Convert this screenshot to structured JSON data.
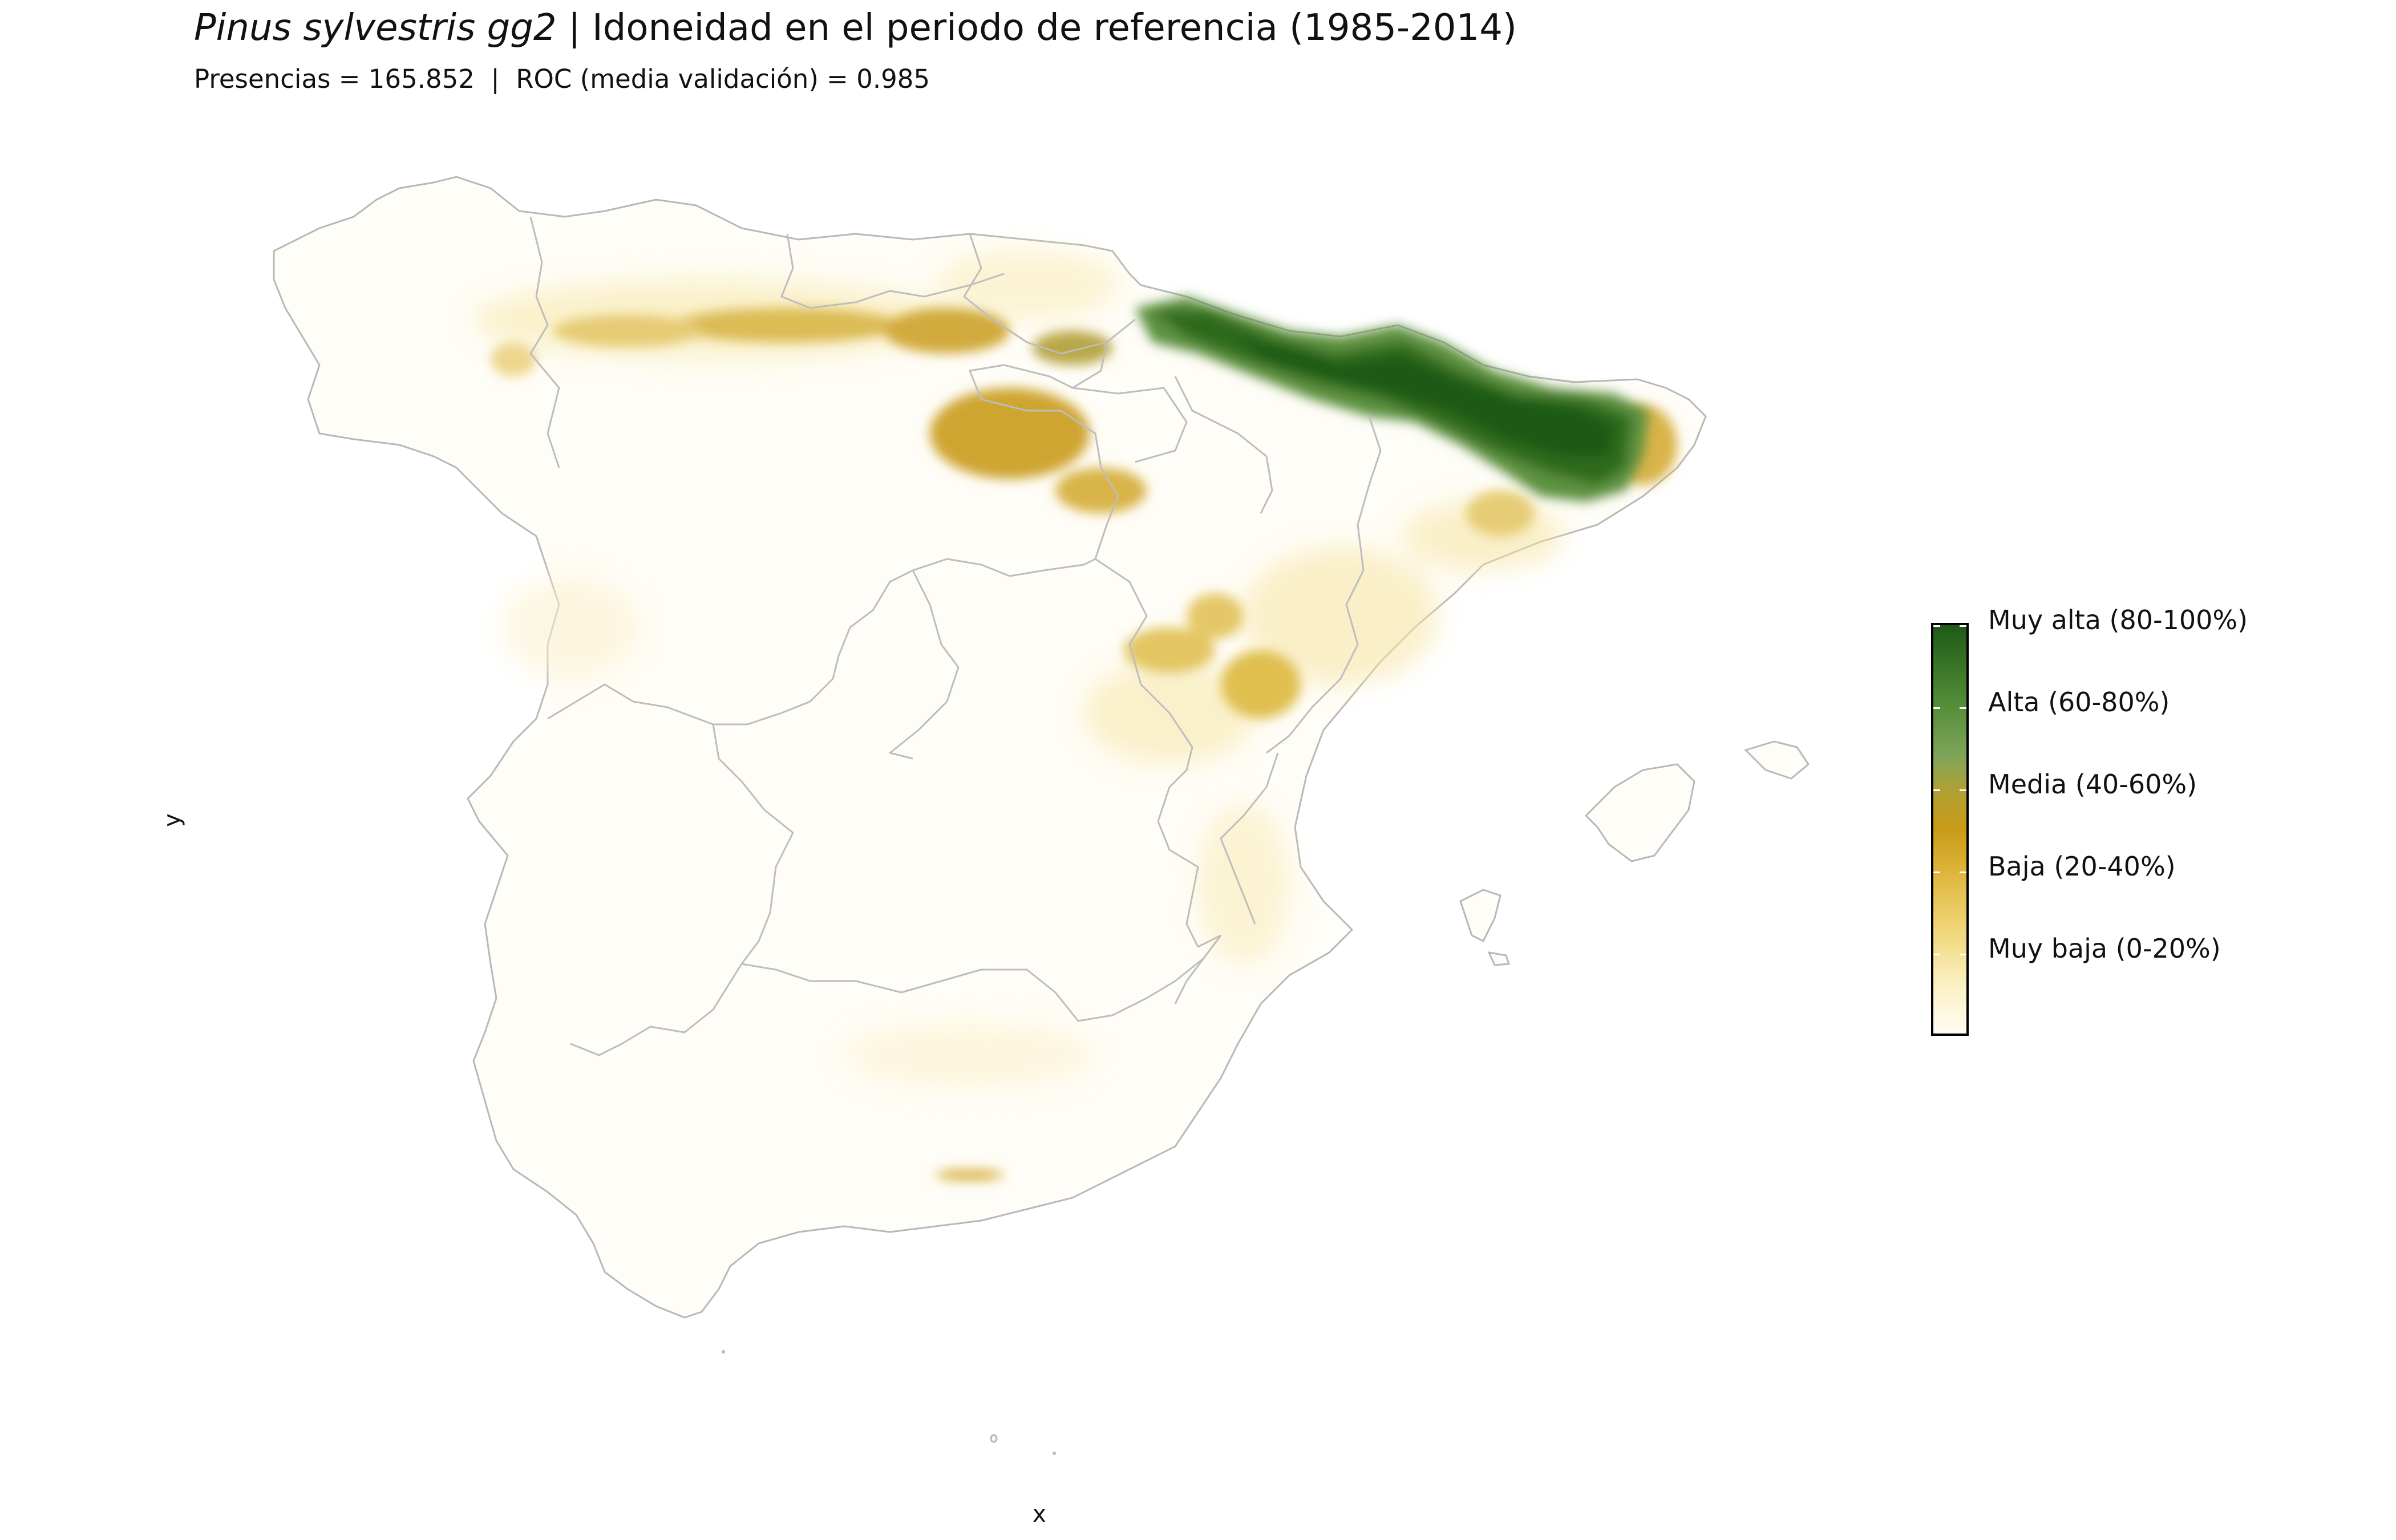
{
  "title": {
    "species": "Pinus sylvestris gg2",
    "rest": "| Idoneidad en el periodo de referencia (1985-2014)"
  },
  "subtitle": "Presencias = 165.852  |  ROC (media validación) = 0.985",
  "axes": {
    "x_label": "x",
    "y_label": "y"
  },
  "legend": {
    "labels": [
      "Muy alta (80-100%)",
      "Alta (60-80%)",
      "Media (40-60%)",
      "Baja (20-40%)",
      "Muy baja (0-20%)"
    ],
    "colors": [
      "#1e5a16",
      "#4f8a35",
      "#aea135",
      "#d2a21c",
      "#f0d77a",
      "#fffdf4"
    ]
  },
  "map": {
    "border_color": "#b4b4b4",
    "land_color": "#fffdf7"
  }
}
